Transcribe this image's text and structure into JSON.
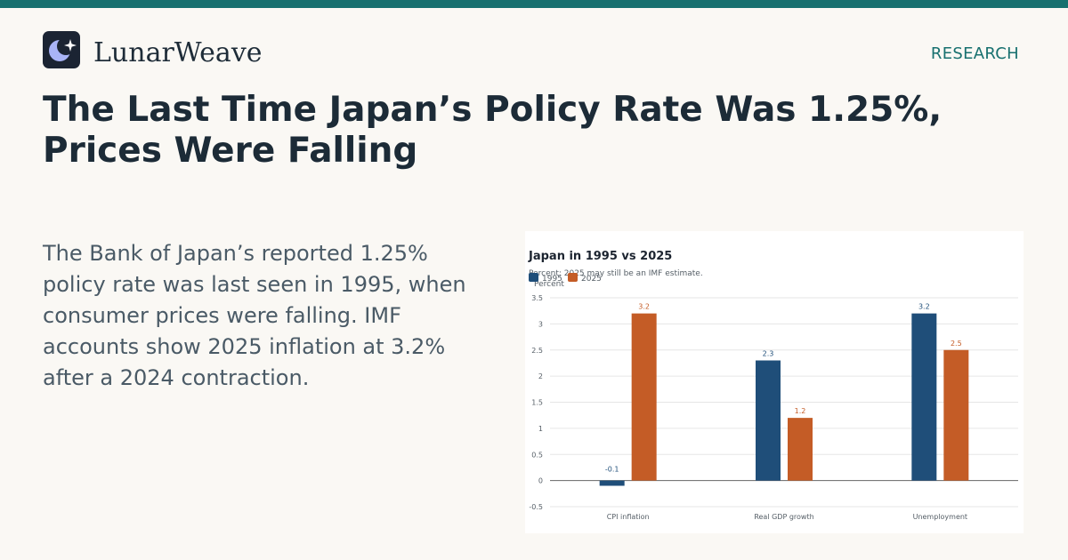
{
  "brand": {
    "name": "LunarWeave",
    "logo_icon": "crescent-moon-sparkle-icon"
  },
  "section_label": "RESEARCH",
  "headline": "The Last Time Japan’s Policy Rate Was 1.25%, Prices Were Falling",
  "lede": "The Bank of Japan’s reported 1.25% policy rate was last seen in 1995, when consumer prices were falling. IMF accounts show 2025 inflation at 3.2% after a 2024 contraction.",
  "colors": {
    "accent": "#17706f",
    "series_1995": "#1f4e79",
    "series_2025": "#c45c26"
  },
  "chart_data": {
    "type": "bar",
    "title": "Japan in 1995 vs 2025",
    "subtitle": "Percent; 2025 may still be an IMF estimate.",
    "ylabel": "Percent",
    "xlabel": "",
    "categories": [
      "CPI inflation",
      "Real GDP growth",
      "Unemployment"
    ],
    "series": [
      {
        "name": "1995",
        "values": [
          -0.1,
          2.3,
          3.2
        ]
      },
      {
        "name": "2025",
        "values": [
          3.2,
          1.2,
          2.5
        ]
      }
    ],
    "ylim": [
      -0.5,
      3.5
    ],
    "yticks": [
      "-0.5",
      "0",
      "0.5",
      "1",
      "1.5",
      "2",
      "2.5",
      "3",
      "3.5"
    ],
    "data_labels": [
      [
        "-0.1",
        "2.3",
        "3.2"
      ],
      [
        "3.2",
        "1.2",
        "2.5"
      ]
    ],
    "grid": true,
    "legend": "top-left"
  }
}
